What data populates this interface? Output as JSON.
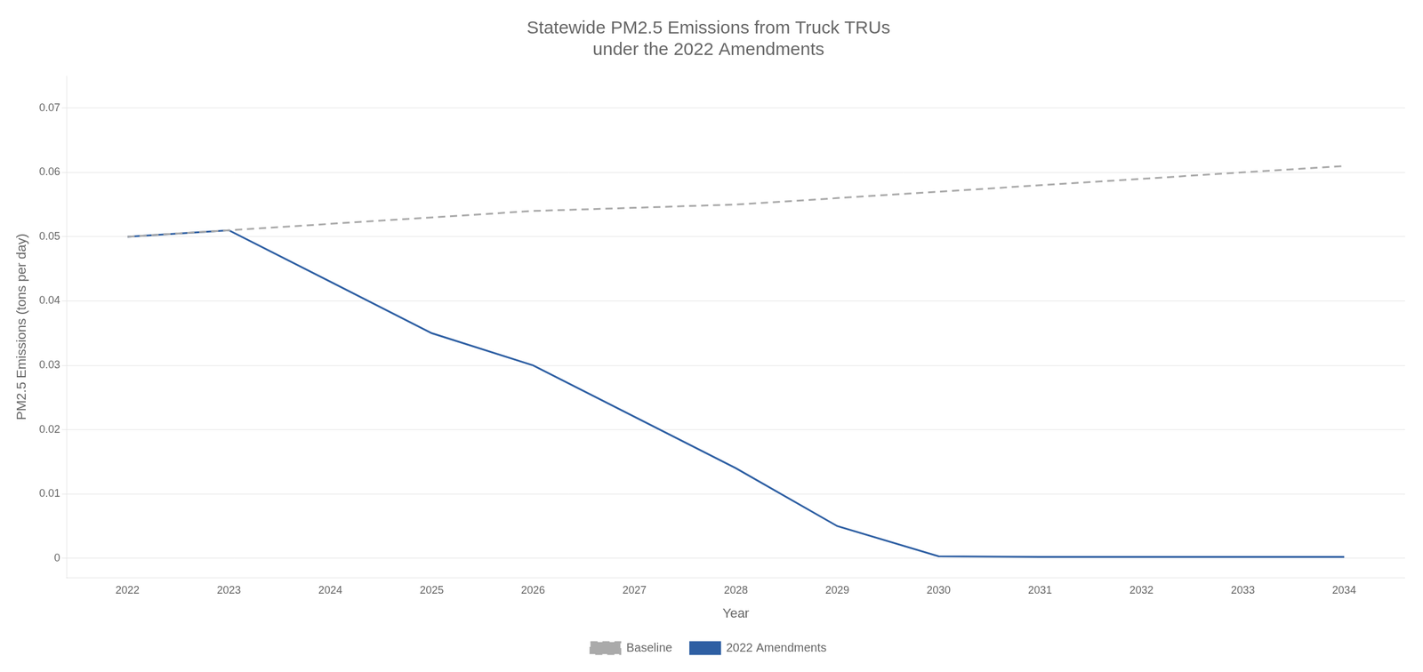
{
  "chart_data": {
    "type": "line",
    "title": "Statewide PM2.5 Emissions from Truck TRUs\nunder the 2022 Amendments",
    "x_label": "Year",
    "y_label": "PM2.5 Emissions (tons per day)",
    "x": [
      2022,
      2023,
      2024,
      2025,
      2026,
      2027,
      2028,
      2029,
      2030,
      2031,
      2032,
      2033,
      2034
    ],
    "series": [
      {
        "name": "Baseline",
        "color": "#aaaaaa",
        "line_style": "dashed",
        "values": [
          0.05,
          0.051,
          0.052,
          0.053,
          0.054,
          0.0545,
          0.055,
          0.056,
          0.057,
          0.058,
          0.059,
          0.06,
          0.061
        ]
      },
      {
        "name": "2022 Amendments",
        "color": "#2e5fa3",
        "line_style": "solid",
        "values": [
          0.05,
          0.051,
          0.043,
          0.035,
          0.03,
          0.022,
          0.014,
          0.005,
          0.0003,
          0.0002,
          0.0002,
          0.0002,
          0.0002
        ]
      }
    ],
    "xlim": [
      2021.4,
      2034.6
    ],
    "xticks": [
      2022,
      2023,
      2024,
      2025,
      2026,
      2027,
      2028,
      2029,
      2030,
      2031,
      2032,
      2033,
      2034
    ],
    "ylim": [
      -0.003,
      0.075
    ],
    "yticks": [
      0,
      0.01,
      0.02,
      0.03,
      0.04,
      0.05,
      0.06,
      0.07
    ],
    "grid": "y",
    "legend": "bottom"
  }
}
